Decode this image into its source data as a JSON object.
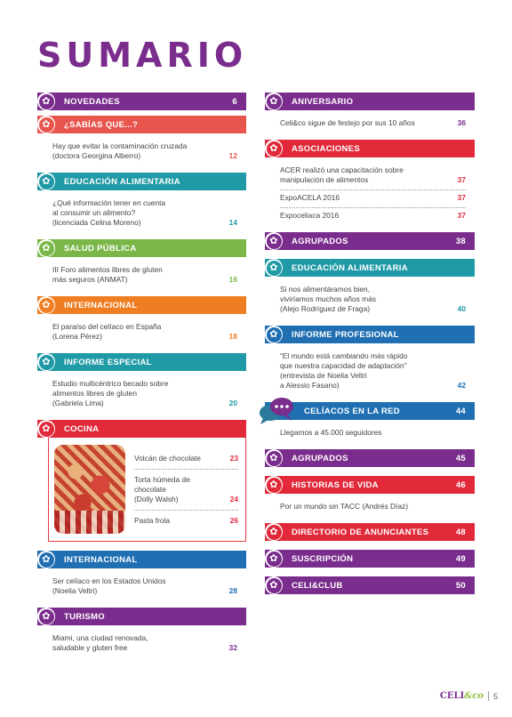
{
  "title": "SUMARIO",
  "colors": {
    "purple": "#7a2d8c",
    "coral": "#e8554d",
    "teal": "#1f9aa6",
    "green": "#7ab648",
    "orange": "#ef7e22",
    "red": "#e1293a",
    "blue": "#1f6fb2"
  },
  "left": [
    {
      "label": "NOVEDADES",
      "page": "6",
      "color": "#7a2d8c",
      "items": []
    },
    {
      "label": "¿SABÍAS QUE...?",
      "page": "",
      "color": "#e8554d",
      "items": [
        {
          "text": "Hay que evitar la contaminación cruzada\n(doctora Georgina Alberro)",
          "page": "12"
        }
      ]
    },
    {
      "label": "EDUCACIÓN ALIMENTARIA",
      "page": "",
      "color": "#1f9aa6",
      "items": [
        {
          "text": "¿Qué información tener en cuenta\nal consumir un alimento?\n(licenciada Celina Moreno)",
          "page": "14"
        }
      ]
    },
    {
      "label": "SALUD PÚBLICA",
      "page": "",
      "color": "#7ab648",
      "items": [
        {
          "text": "III Foro alimentos libres de gluten\nmás seguros (ANMAT)",
          "page": "16"
        }
      ]
    },
    {
      "label": "INTERNACIONAL",
      "page": "",
      "color": "#ef7e22",
      "items": [
        {
          "text": "El paraíso del celíaco en España\n(Lorena Pérez)",
          "page": "18"
        }
      ]
    },
    {
      "label": "INFORME ESPECIAL",
      "page": "",
      "color": "#1f9aa6",
      "items": [
        {
          "text": "Estudio multicéntrico becado sobre\nalimentos libres de gluten\n(Gabriela Lima)",
          "page": "20"
        }
      ]
    }
  ],
  "cocina": {
    "label": "COCINA",
    "color": "#e1293a",
    "items": [
      {
        "text": "Volcán de chocolate",
        "page": "23"
      },
      {
        "text": "Torta húmeda de chocolate\n(Dolly Walsh)",
        "page": "24"
      },
      {
        "text": "Pasta frola",
        "page": "26"
      }
    ]
  },
  "left_bottom": [
    {
      "label": "INTERNACIONAL",
      "page": "",
      "color": "#1f6fb2",
      "items": [
        {
          "text": "Ser celíaco en los Estados Unidos\n(Noelia Veltri)",
          "page": "28"
        }
      ]
    },
    {
      "label": "TURISMO",
      "page": "",
      "color": "#7a2d8c",
      "items": [
        {
          "text": "Miami, una ciudad renovada,\nsaludable y gluten free",
          "page": "32"
        }
      ]
    }
  ],
  "right": [
    {
      "label": "ANIVERSARIO",
      "page": "",
      "color": "#7a2d8c",
      "items": [
        {
          "text": "Celi&co sigue de festejo por sus 10 años",
          "page": "36"
        }
      ]
    },
    {
      "label": "ASOCIACIONES",
      "page": "",
      "color": "#e1293a",
      "items": [
        {
          "text": "ACER realizó una capacitación sobre\nmanipulación de alimentos",
          "page": "37"
        },
        {
          "text": "ExpoACELA 2016",
          "page": "37"
        },
        {
          "text": "Expoceliaca 2016",
          "page": "37"
        }
      ]
    },
    {
      "label": "AGRUPADOS",
      "page": "38",
      "color": "#7a2d8c",
      "items": []
    },
    {
      "label": "EDUCACIÓN ALIMENTARIA",
      "page": "",
      "color": "#1f9aa6",
      "items": [
        {
          "text": "Si nos alimentáramos bien,\nviviríamos muchos años más\n(Alejo Rodríguez de Fraga)",
          "page": "40"
        }
      ]
    },
    {
      "label": "INFORME PROFESIONAL",
      "page": "",
      "color": "#1f6fb2",
      "items": [
        {
          "text": "“El mundo está cambiando más rápido\nque nuestra capacidad de adaptación”\n(entrevista de Noelia Veltri\na Alessio Fasano)",
          "page": "42"
        }
      ]
    },
    {
      "label": "CELÍACOS EN LA RED",
      "page": "44",
      "color": "#1f6fb2",
      "items": [
        {
          "text": "Llegamos a 45.000 seguidores",
          "page": ""
        }
      ]
    },
    {
      "label": "AGRUPADOS",
      "page": "45",
      "color": "#7a2d8c",
      "items": []
    },
    {
      "label": "HISTORIAS DE VIDA",
      "page": "46",
      "color": "#e1293a",
      "items": [
        {
          "text": "Por un mundo sin TACC (Andrés Díaz)",
          "page": ""
        }
      ]
    },
    {
      "label": "DIRECTORIO DE ANUNCIANTES",
      "page": "48",
      "color": "#e1293a",
      "items": []
    },
    {
      "label": "SUSCRIPCIÓN",
      "page": "49",
      "color": "#7a2d8c",
      "items": []
    },
    {
      "label": "CELI&CLUB",
      "page": "50",
      "color": "#7a2d8c",
      "items": []
    }
  ],
  "footer": {
    "brand_main": "CELI",
    "brand_accent": "&co",
    "page_number": "5"
  }
}
